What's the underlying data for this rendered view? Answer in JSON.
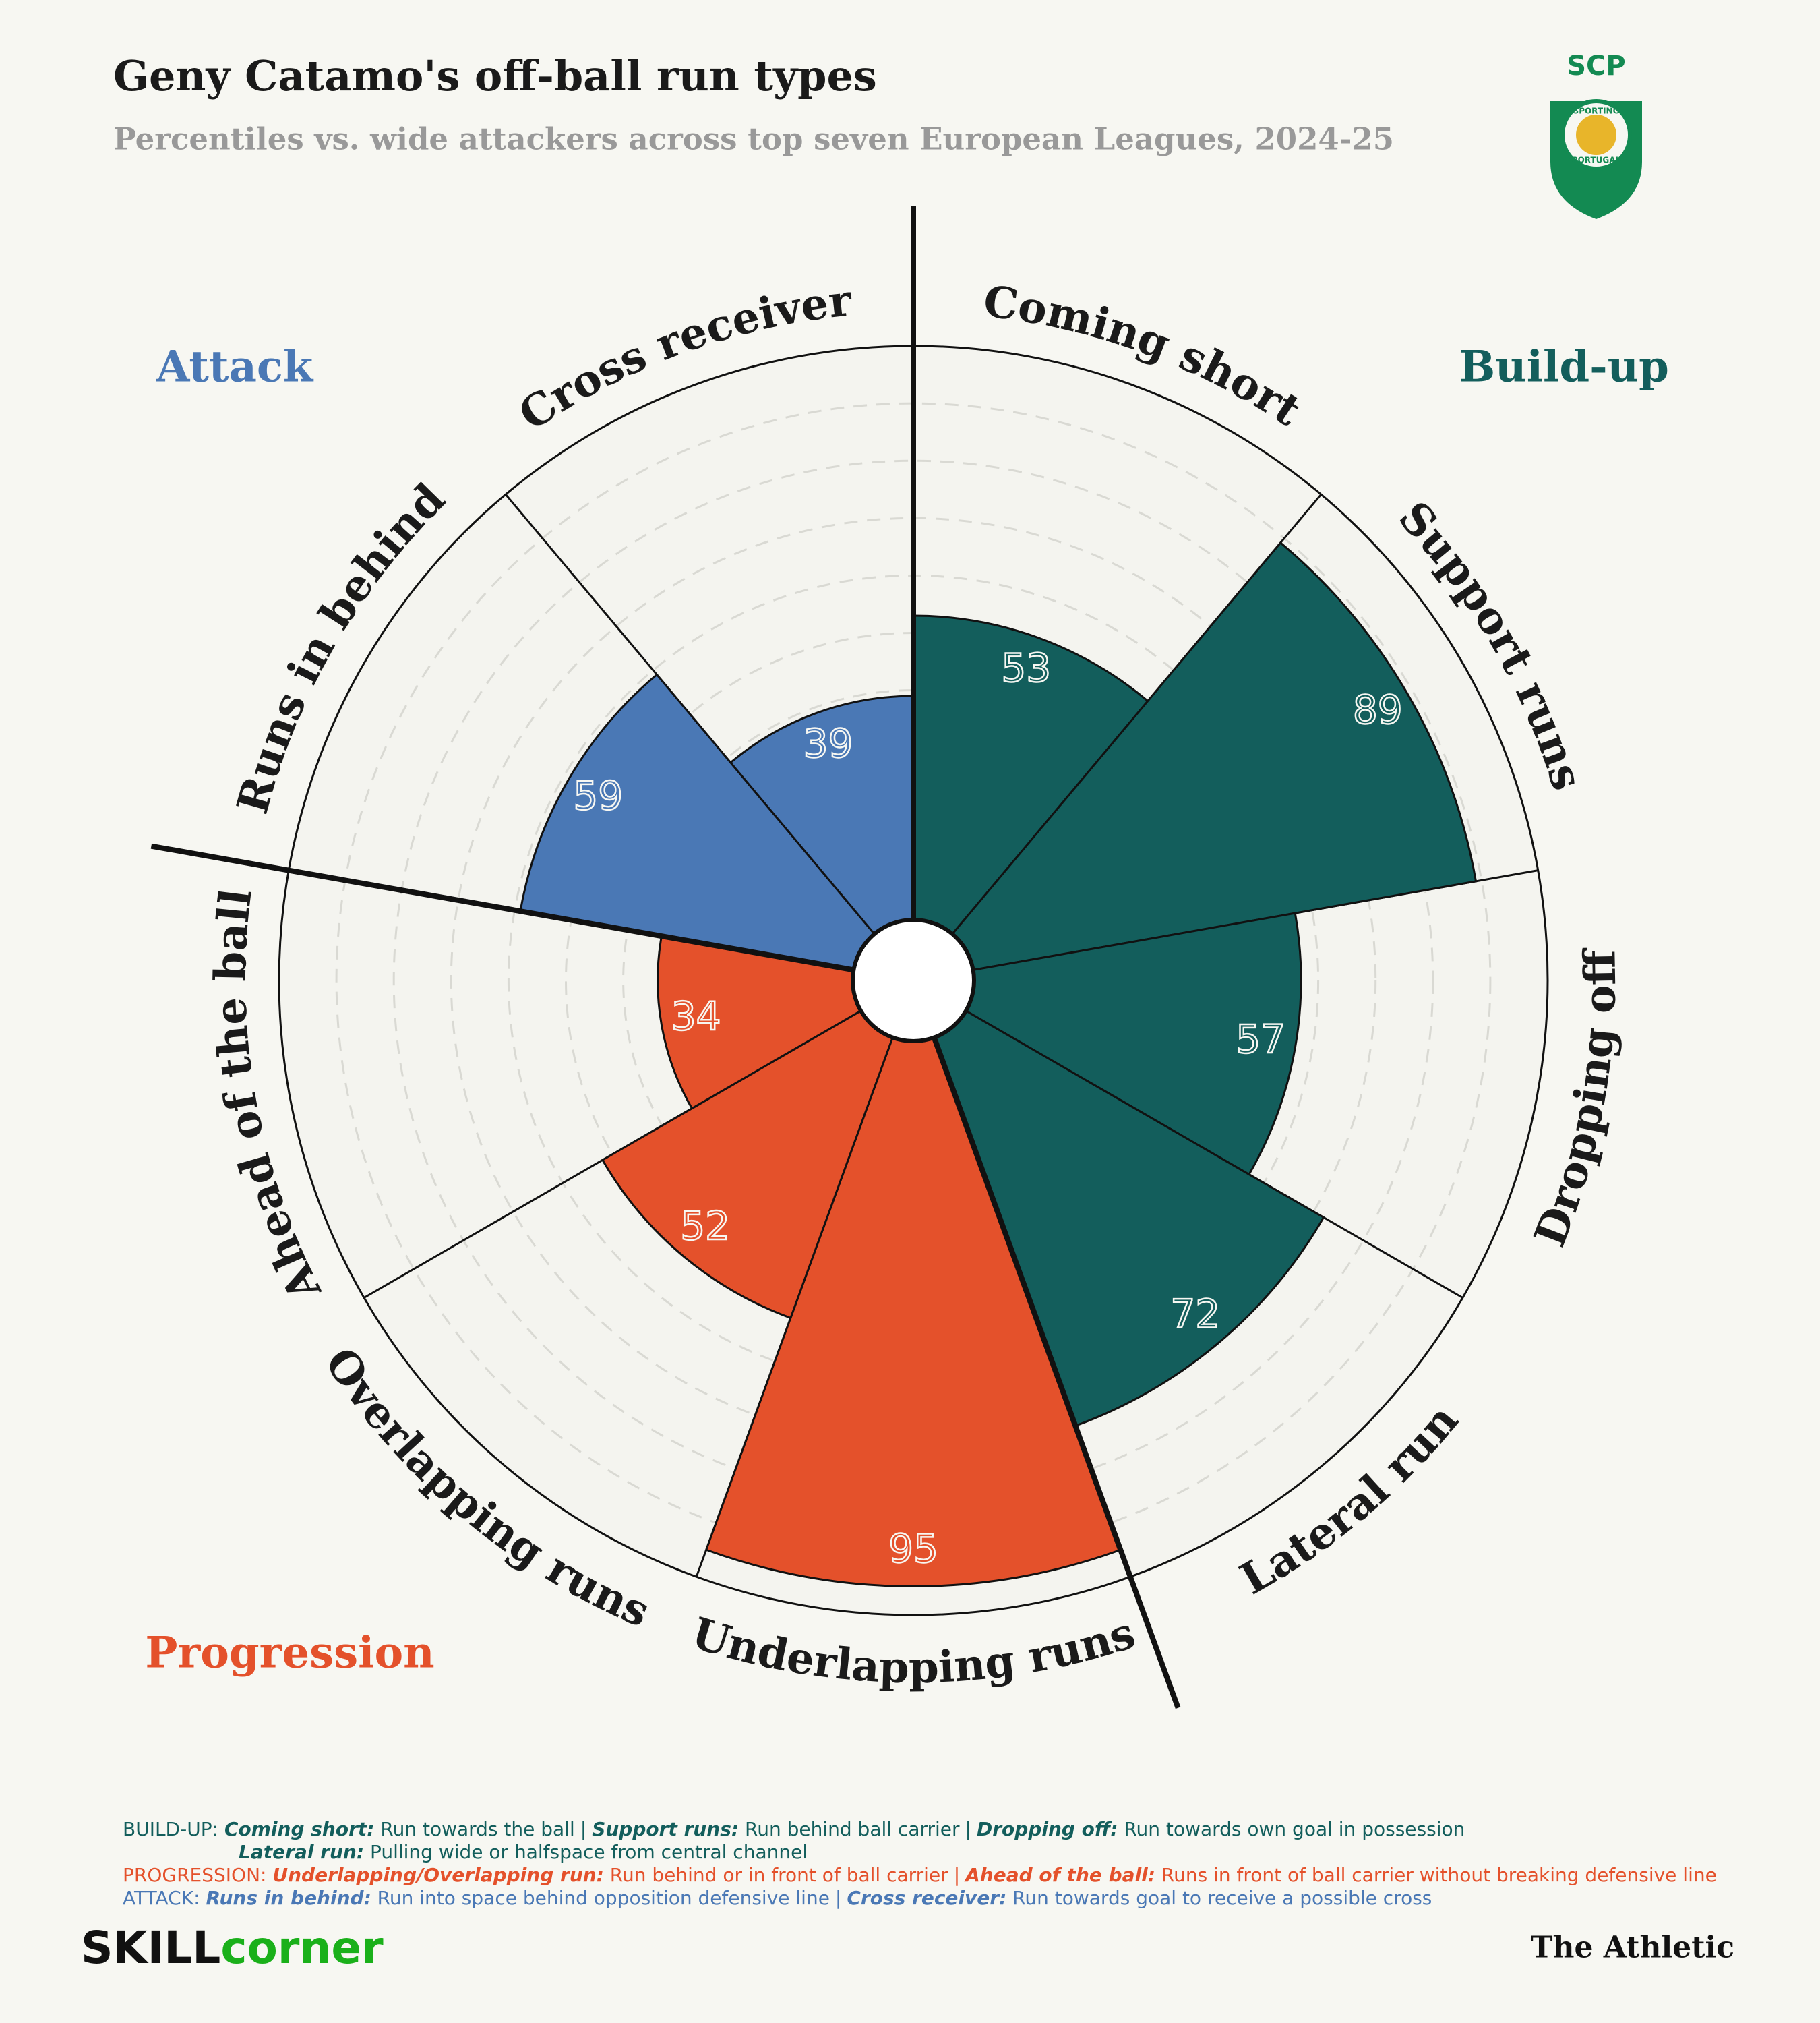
{
  "chart_data": {
    "type": "polar-bar",
    "title": "Geny Catamo's off-ball run types",
    "subtitle": "Percentiles vs. wide attackers across top seven European Leagues, 2024-25",
    "categories": [
      "Coming short",
      "Support runs",
      "Dropping off",
      "Lateral run",
      "Underlapping runs",
      "Overlapping runs",
      "Ahead of the ball",
      "Runs in behind",
      "Cross receiver"
    ],
    "values": [
      53,
      89,
      57,
      72,
      95,
      52,
      34,
      59,
      39
    ],
    "colors": [
      "#135e5c",
      "#135e5c",
      "#135e5c",
      "#135e5c",
      "#e4512b",
      "#e4512b",
      "#e4512b",
      "#4a78b5",
      "#4a78b5"
    ],
    "rlim": [
      0,
      100
    ],
    "rticks": [
      10,
      20,
      30,
      40,
      50,
      60,
      70,
      80,
      90
    ],
    "groups": [
      {
        "name": "Build-up",
        "color": "#135e5c"
      },
      {
        "name": "Progression",
        "color": "#e4512b"
      },
      {
        "name": "Attack",
        "color": "#4a78b5"
      }
    ]
  },
  "logo": {
    "text": "SCP",
    "ring_top": "SPORTING",
    "ring_bottom": "PORTUGAL"
  },
  "notes": {
    "separator": "|",
    "lines": [
      {
        "label": "BUILD-UP:",
        "color": "#135e5c",
        "items": [
          {
            "term": "Coming short:",
            "text": "Run towards the ball"
          },
          {
            "term": "Support runs:",
            "text": "Run behind ball carrier"
          },
          {
            "term": "Dropping off:",
            "text": "Run towards own goal in possession"
          }
        ]
      },
      {
        "color": "#135e5c",
        "items": [
          {
            "term": "Lateral run:",
            "text": "Pulling wide or halfspace from central channel"
          }
        ]
      },
      {
        "label": "PROGRESSION:",
        "color": "#e4512b",
        "items": [
          {
            "term": "Underlapping/Overlapping run:",
            "text": "Run behind or in front of ball carrier"
          },
          {
            "term": "Ahead of the ball:",
            "text": "Runs in front of ball carrier without breaking defensive line"
          }
        ]
      },
      {
        "label": "ATTACK:",
        "color": "#4a78b5",
        "items": [
          {
            "term": "Runs in behind:",
            "text": "Run into space behind opposition defensive line"
          },
          {
            "term": "Cross receiver:",
            "text": "Run towards goal to receive a possible cross"
          }
        ]
      }
    ]
  },
  "footer": {
    "left_a": "SKILL",
    "left_b": "corner",
    "right": "The Athletic"
  }
}
